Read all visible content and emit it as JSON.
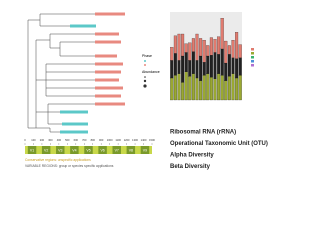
{
  "tree_legend": {
    "phase": "Phase",
    "abundance": "Abundance"
  },
  "chart_data": {
    "type": "stacked-bar",
    "series": [
      {
        "color": "#9aa832",
        "values": [
          0.25,
          0.28,
          0.3,
          0.2,
          0.32,
          0.27,
          0.3,
          0.25,
          0.22,
          0.28,
          0.3,
          0.26,
          0.24,
          0.3,
          0.28,
          0.22,
          0.27,
          0.3,
          0.25,
          0.28
        ]
      },
      {
        "color": "#222222",
        "values": [
          0.2,
          0.25,
          0.15,
          0.3,
          0.22,
          0.18,
          0.25,
          0.2,
          0.28,
          0.15,
          0.2,
          0.25,
          0.3,
          0.22,
          0.3,
          0.2,
          0.25,
          0.18,
          0.22,
          0.2
        ]
      },
      {
        "color": "#e07b6f",
        "values": [
          0.15,
          0.2,
          0.3,
          0.25,
          0.1,
          0.2,
          0.15,
          0.3,
          0.2,
          0.25,
          0.12,
          0.2,
          0.15,
          0.2,
          0.35,
          0.25,
          0.1,
          0.2,
          0.3,
          0.15
        ]
      }
    ],
    "ylim": [
      0,
      1
    ]
  },
  "topics": [
    "Ribosomal RNA (rRNA)",
    "Operational Taxonomic Unit (OTU)",
    "Alpha Diversity",
    "Beta Diversity"
  ],
  "gene_map": {
    "scale": [
      0,
      100,
      200,
      300,
      400,
      500,
      600,
      700,
      800,
      900,
      1000,
      1100,
      1200,
      1300,
      1400,
      1500
    ],
    "regions": [
      "V1",
      "V2",
      "V3",
      "V4",
      "V5",
      "V6",
      "V7",
      "V8",
      "V9"
    ],
    "conservative": "Conservative regions: unspecific applications",
    "variable": "VARIABLE REGIONS: group or species specific applications"
  }
}
